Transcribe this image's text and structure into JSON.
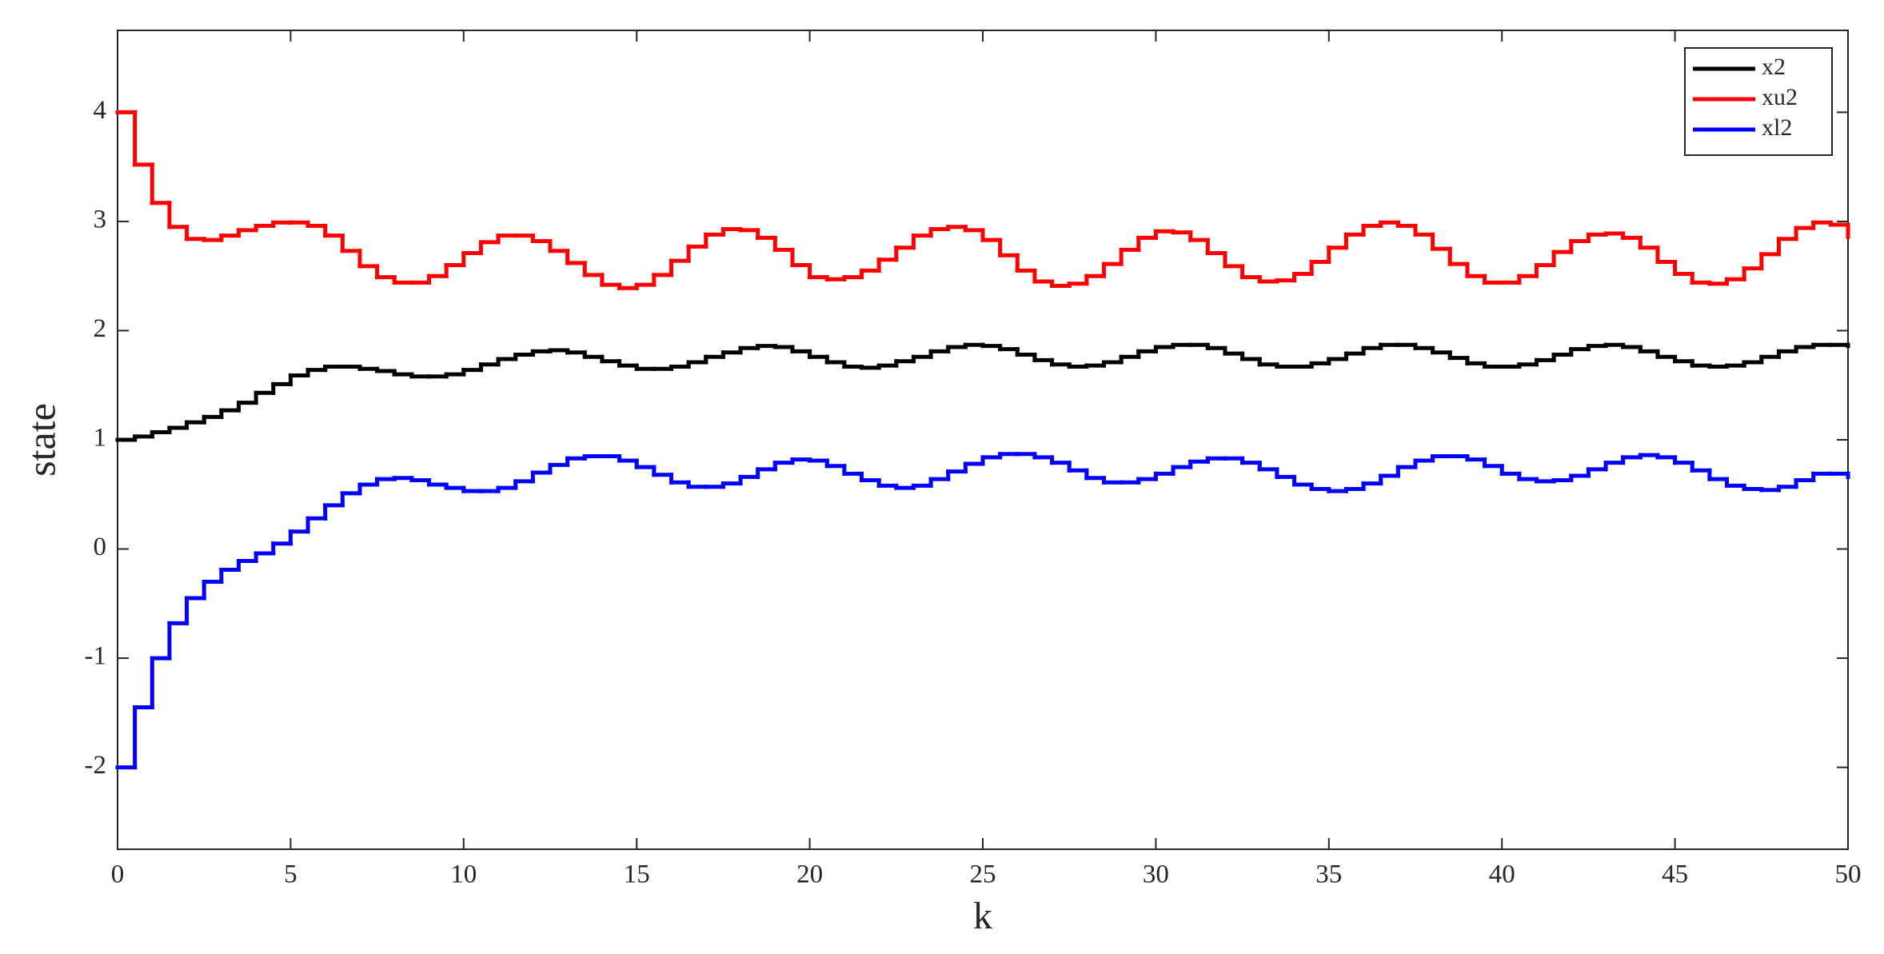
{
  "chart_data": {
    "type": "stairs",
    "xlabel": "k",
    "ylabel": "state",
    "x": [
      0,
      0.5,
      1,
      1.5,
      2,
      2.5,
      3,
      3.5,
      4,
      4.5,
      5,
      5.5,
      6,
      6.5,
      7,
      7.5,
      8,
      8.5,
      9,
      9.5,
      10,
      10.5,
      11,
      11.5,
      12,
      12.5,
      13,
      13.5,
      14,
      14.5,
      15,
      15.5,
      16,
      16.5,
      17,
      17.5,
      18,
      18.5,
      19,
      19.5,
      20,
      20.5,
      21,
      21.5,
      22,
      22.5,
      23,
      23.5,
      24,
      24.5,
      25,
      25.5,
      26,
      26.5,
      27,
      27.5,
      28,
      28.5,
      29,
      29.5,
      30,
      30.5,
      31,
      31.5,
      32,
      32.5,
      33,
      33.5,
      34,
      34.5,
      35,
      35.5,
      36,
      36.5,
      37,
      37.5,
      38,
      38.5,
      39,
      39.5,
      40,
      40.5,
      41,
      41.5,
      42,
      42.5,
      43,
      43.5,
      44,
      44.5,
      45,
      45.5,
      46,
      46.5,
      47,
      47.5,
      48,
      48.5,
      49,
      49.5,
      50
    ],
    "series": [
      {
        "name": "x2",
        "color": "#000000",
        "values": [
          1.0,
          1.03,
          1.07,
          1.11,
          1.16,
          1.21,
          1.27,
          1.34,
          1.43,
          1.51,
          1.59,
          1.64,
          1.67,
          1.67,
          1.65,
          1.63,
          1.6,
          1.58,
          1.58,
          1.6,
          1.64,
          1.69,
          1.74,
          1.78,
          1.81,
          1.82,
          1.8,
          1.76,
          1.72,
          1.68,
          1.65,
          1.65,
          1.67,
          1.71,
          1.76,
          1.8,
          1.84,
          1.86,
          1.85,
          1.81,
          1.76,
          1.71,
          1.67,
          1.66,
          1.68,
          1.72,
          1.76,
          1.81,
          1.85,
          1.87,
          1.86,
          1.83,
          1.78,
          1.73,
          1.69,
          1.67,
          1.68,
          1.71,
          1.76,
          1.81,
          1.85,
          1.87,
          1.87,
          1.84,
          1.79,
          1.74,
          1.69,
          1.67,
          1.67,
          1.7,
          1.74,
          1.79,
          1.84,
          1.87,
          1.87,
          1.84,
          1.8,
          1.75,
          1.7,
          1.67,
          1.67,
          1.69,
          1.73,
          1.78,
          1.83,
          1.86,
          1.87,
          1.85,
          1.81,
          1.76,
          1.72,
          1.68,
          1.67,
          1.68,
          1.71,
          1.76,
          1.81,
          1.85,
          1.87,
          1.87,
          1.86
        ]
      },
      {
        "name": "xu2",
        "color": "#ff0000",
        "values": [
          4.0,
          3.52,
          3.17,
          2.95,
          2.84,
          2.83,
          2.87,
          2.92,
          2.96,
          2.99,
          2.99,
          2.96,
          2.87,
          2.73,
          2.59,
          2.49,
          2.44,
          2.44,
          2.5,
          2.6,
          2.71,
          2.81,
          2.87,
          2.87,
          2.82,
          2.73,
          2.62,
          2.51,
          2.42,
          2.39,
          2.42,
          2.51,
          2.64,
          2.77,
          2.88,
          2.93,
          2.92,
          2.85,
          2.74,
          2.6,
          2.49,
          2.47,
          2.49,
          2.55,
          2.65,
          2.76,
          2.87,
          2.93,
          2.95,
          2.92,
          2.83,
          2.69,
          2.55,
          2.45,
          2.41,
          2.43,
          2.5,
          2.61,
          2.74,
          2.85,
          2.91,
          2.9,
          2.83,
          2.71,
          2.59,
          2.49,
          2.45,
          2.46,
          2.52,
          2.63,
          2.76,
          2.88,
          2.96,
          2.99,
          2.96,
          2.88,
          2.75,
          2.61,
          2.5,
          2.44,
          2.44,
          2.5,
          2.6,
          2.72,
          2.82,
          2.88,
          2.89,
          2.85,
          2.76,
          2.63,
          2.52,
          2.44,
          2.43,
          2.47,
          2.57,
          2.7,
          2.84,
          2.94,
          2.99,
          2.97,
          2.86
        ]
      },
      {
        "name": "xl2",
        "color": "#0000ff",
        "values": [
          -2.0,
          -1.45,
          -1.0,
          -0.68,
          -0.45,
          -0.3,
          -0.19,
          -0.11,
          -0.04,
          0.05,
          0.16,
          0.28,
          0.4,
          0.51,
          0.59,
          0.64,
          0.65,
          0.63,
          0.59,
          0.56,
          0.53,
          0.53,
          0.56,
          0.62,
          0.7,
          0.77,
          0.83,
          0.85,
          0.85,
          0.81,
          0.75,
          0.68,
          0.61,
          0.57,
          0.57,
          0.6,
          0.66,
          0.73,
          0.79,
          0.82,
          0.81,
          0.76,
          0.69,
          0.63,
          0.58,
          0.56,
          0.58,
          0.64,
          0.71,
          0.78,
          0.84,
          0.87,
          0.87,
          0.84,
          0.79,
          0.72,
          0.65,
          0.61,
          0.61,
          0.64,
          0.69,
          0.75,
          0.8,
          0.83,
          0.83,
          0.79,
          0.73,
          0.66,
          0.59,
          0.55,
          0.53,
          0.55,
          0.6,
          0.67,
          0.75,
          0.81,
          0.85,
          0.85,
          0.82,
          0.76,
          0.69,
          0.64,
          0.62,
          0.63,
          0.67,
          0.73,
          0.79,
          0.84,
          0.86,
          0.84,
          0.79,
          0.72,
          0.64,
          0.58,
          0.55,
          0.54,
          0.57,
          0.63,
          0.69,
          0.69,
          0.66
        ]
      }
    ],
    "xlim": [
      0,
      50
    ],
    "xticks": [
      0,
      5,
      10,
      15,
      20,
      25,
      30,
      35,
      40,
      45,
      50
    ],
    "ylim": [
      -2.75,
      4.75
    ],
    "yticks": [
      -2,
      -1,
      0,
      1,
      2,
      3,
      4
    ],
    "legend": "northeast",
    "grid": false
  }
}
